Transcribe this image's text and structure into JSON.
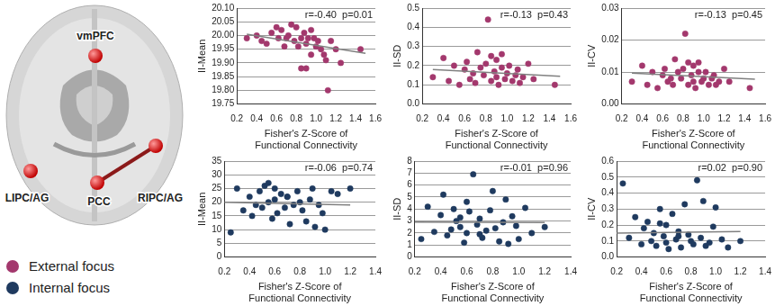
{
  "diagram": {
    "regions": [
      "vmPFC",
      "LIPC/AG",
      "PCC",
      "RIPC/AG"
    ],
    "connection": [
      "PCC",
      "RIPC/AG"
    ]
  },
  "chart_data": [
    {
      "type": "scatter",
      "ylabel": "II-Mean",
      "xlabel": [
        "Fisher's Z-Score of",
        "Functional Connectivity"
      ],
      "annotation": "r=-0.40  p=0.01",
      "x": [
        0.3,
        0.4,
        0.45,
        0.5,
        0.55,
        0.6,
        0.62,
        0.65,
        0.68,
        0.7,
        0.72,
        0.75,
        0.78,
        0.8,
        0.82,
        0.85,
        0.85,
        0.88,
        0.9,
        0.9,
        0.92,
        0.95,
        0.95,
        0.98,
        1.0,
        1.02,
        1.05,
        1.08,
        1.1,
        1.12,
        1.15,
        1.2,
        1.25,
        1.45
      ],
      "series": [
        {
          "name": "External focus",
          "color": "#a3386d",
          "values": [
            19.99,
            20.0,
            19.98,
            19.97,
            20.01,
            20.03,
            19.99,
            20.02,
            19.96,
            19.99,
            20.0,
            20.04,
            19.98,
            20.03,
            19.96,
            19.99,
            19.88,
            20.01,
            19.97,
            19.88,
            19.99,
            20.02,
            19.93,
            19.99,
            19.96,
            19.98,
            19.95,
            19.93,
            19.91,
            19.8,
            19.98,
            19.95,
            19.9,
            19.95
          ]
        },
        {
          "type": "line",
          "color": "#808080",
          "x": [
            0.3,
            1.5
          ],
          "values": [
            20.005,
            19.935
          ]
        }
      ],
      "xlim": [
        0.2,
        1.6
      ],
      "xticks": [
        0.2,
        0.4,
        0.6,
        0.8,
        {
          "value": 1,
          "label": "1.0"
        },
        1.2,
        1.4,
        1.6
      ],
      "ylim": [
        19.75,
        20.1
      ],
      "yticks": [
        19.75,
        {
          "value": 19.8,
          "label": "19.80"
        },
        19.85,
        {
          "value": 19.9,
          "label": "19.90"
        },
        19.95,
        {
          "value": 20,
          "label": "20.00"
        },
        20.05,
        {
          "value": 20.1,
          "label": "20.10"
        }
      ],
      "grid": true
    },
    {
      "type": "scatter",
      "ylabel": "II-SD",
      "xlabel": [
        "Fisher's Z-Score of",
        "Functional Connectivity"
      ],
      "annotation": "r=-0.13  p=0.43",
      "x": [
        0.3,
        0.4,
        0.45,
        0.5,
        0.55,
        0.6,
        0.62,
        0.65,
        0.68,
        0.7,
        0.72,
        0.75,
        0.78,
        0.8,
        0.82,
        0.85,
        0.85,
        0.88,
        0.9,
        0.9,
        0.92,
        0.95,
        0.95,
        0.98,
        1.0,
        1.02,
        1.05,
        1.08,
        1.1,
        1.12,
        1.15,
        1.2,
        1.25,
        1.45
      ],
      "series": [
        {
          "name": "External focus",
          "color": "#a3386d",
          "values": [
            0.14,
            0.24,
            0.12,
            0.2,
            0.1,
            0.18,
            0.22,
            0.13,
            0.16,
            0.11,
            0.27,
            0.19,
            0.15,
            0.21,
            0.44,
            0.12,
            0.25,
            0.17,
            0.14,
            0.23,
            0.1,
            0.19,
            0.26,
            0.13,
            0.16,
            0.2,
            0.12,
            0.15,
            0.18,
            0.11,
            0.14,
            0.21,
            0.13,
            0.1
          ]
        },
        {
          "type": "line",
          "color": "#808080",
          "x": [
            0.3,
            1.5
          ],
          "values": [
            0.18,
            0.145
          ]
        }
      ],
      "xlim": [
        0.2,
        1.6
      ],
      "xticks": [
        0.2,
        0.4,
        0.6,
        0.8,
        {
          "value": 1,
          "label": "1.0"
        },
        1.2,
        1.4,
        1.6
      ],
      "ylim": [
        0,
        0.5
      ],
      "yticks": [
        {
          "value": 0,
          "label": "0.0"
        },
        0.1,
        0.2,
        0.3,
        0.4,
        0.5
      ],
      "grid": true
    },
    {
      "type": "scatter",
      "ylabel": "II-CV",
      "xlabel": [
        "Fisher's Z-Score of",
        "Functional Connectivity"
      ],
      "annotation": "r=-0.13  p=0.45",
      "x": [
        0.3,
        0.4,
        0.45,
        0.5,
        0.55,
        0.6,
        0.62,
        0.65,
        0.68,
        0.7,
        0.72,
        0.75,
        0.78,
        0.8,
        0.82,
        0.85,
        0.85,
        0.88,
        0.9,
        0.9,
        0.92,
        0.95,
        0.95,
        0.98,
        1.0,
        1.02,
        1.05,
        1.08,
        1.1,
        1.12,
        1.15,
        1.2,
        1.25,
        1.45
      ],
      "series": [
        {
          "name": "External focus",
          "color": "#a3386d",
          "values": [
            0.007,
            0.012,
            0.006,
            0.01,
            0.005,
            0.009,
            0.011,
            0.007,
            0.008,
            0.006,
            0.014,
            0.01,
            0.008,
            0.011,
            0.022,
            0.006,
            0.013,
            0.009,
            0.007,
            0.012,
            0.005,
            0.01,
            0.013,
            0.007,
            0.008,
            0.01,
            0.006,
            0.008,
            0.009,
            0.006,
            0.007,
            0.011,
            0.007,
            0.005
          ]
        },
        {
          "type": "line",
          "color": "#808080",
          "x": [
            0.3,
            1.5
          ],
          "values": [
            0.0097,
            0.0078
          ]
        }
      ],
      "xlim": [
        0.2,
        1.6
      ],
      "xticks": [
        0.2,
        0.4,
        0.6,
        0.8,
        {
          "value": 1,
          "label": "1.0"
        },
        1.2,
        1.4,
        1.6
      ],
      "ylim": [
        0,
        0.03
      ],
      "yticks": [
        {
          "value": 0,
          "label": "0.00"
        },
        {
          "value": 0.01,
          "label": "0.01"
        },
        {
          "value": 0.02,
          "label": "0.02"
        },
        {
          "value": 0.03,
          "label": "0.03"
        }
      ],
      "grid": true
    },
    {
      "type": "scatter",
      "ylabel": "II-Mean",
      "xlabel": [
        "Fisher's Z-Score of",
        "Functional Connectivity"
      ],
      "annotation": "r=-0.06  p=0.74",
      "x": [
        0.25,
        0.3,
        0.35,
        0.4,
        0.42,
        0.45,
        0.48,
        0.5,
        0.52,
        0.55,
        0.58,
        0.6,
        0.6,
        0.62,
        0.65,
        0.68,
        0.7,
        0.72,
        0.75,
        0.78,
        0.8,
        0.82,
        0.85,
        0.88,
        0.9,
        0.92,
        0.95,
        0.98,
        1.0,
        1.05,
        1.1,
        1.2,
        0.55,
        0.7
      ],
      "series": [
        {
          "name": "Internal focus",
          "color": "#1f3a5f",
          "values": [
            9,
            25,
            17,
            22,
            15,
            19,
            24,
            18,
            26,
            20,
            14,
            25,
            21,
            16,
            23,
            18,
            22,
            12,
            19,
            24,
            20,
            17,
            13,
            21,
            25,
            11,
            19,
            16,
            10,
            24,
            23,
            25,
            27,
            22
          ]
        },
        {
          "type": "line",
          "color": "#808080",
          "x": [
            0.2,
            1.2
          ],
          "values": [
            20,
            19
          ]
        }
      ],
      "xlim": [
        0.2,
        1.4
      ],
      "xticks": [
        0.2,
        0.4,
        0.6,
        0.8,
        {
          "value": 1,
          "label": "1.0"
        },
        1.2,
        1.4
      ],
      "ylim": [
        0,
        35
      ],
      "yticks": [
        0,
        5,
        10,
        15,
        20,
        25,
        30,
        35
      ],
      "grid": true
    },
    {
      "type": "scatter",
      "ylabel": "II-SD",
      "xlabel": [
        "Fisher's Z-Score of",
        "Functional Connectivity"
      ],
      "annotation": "r=-0.01  p=0.96",
      "x": [
        0.25,
        0.3,
        0.35,
        0.4,
        0.42,
        0.45,
        0.48,
        0.5,
        0.52,
        0.55,
        0.58,
        0.6,
        0.6,
        0.62,
        0.65,
        0.68,
        0.7,
        0.72,
        0.75,
        0.78,
        0.8,
        0.82,
        0.85,
        0.88,
        0.9,
        0.92,
        0.95,
        0.98,
        1.0,
        1.05,
        1.1,
        1.2,
        0.55,
        0.7
      ],
      "series": [
        {
          "name": "Internal focus",
          "color": "#1f3a5f",
          "values": [
            1.5,
            4.2,
            2.1,
            3.5,
            5.2,
            1.8,
            2.3,
            4.0,
            3.0,
            2.5,
            1.2,
            4.6,
            2.0,
            3.8,
            6.9,
            2.7,
            3.2,
            1.6,
            2.2,
            3.9,
            5.5,
            2.4,
            1.3,
            2.9,
            4.8,
            1.1,
            3.4,
            2.6,
            1.5,
            4.1,
            2.0,
            2.5,
            3.3,
            1.9
          ]
        },
        {
          "type": "line",
          "color": "#808080",
          "x": [
            0.2,
            1.2
          ],
          "values": [
            2.92,
            2.88
          ]
        }
      ],
      "xlim": [
        0.2,
        1.4
      ],
      "xticks": [
        0.2,
        0.4,
        0.6,
        0.8,
        {
          "value": 1,
          "label": "1.0"
        },
        1.2,
        1.4
      ],
      "ylim": [
        0,
        8
      ],
      "yticks": [
        0,
        1,
        2,
        3,
        4,
        5,
        6,
        7,
        8
      ],
      "grid": true
    },
    {
      "type": "scatter",
      "ylabel": "II-CV",
      "xlabel": [
        "Fisher's Z-Score of",
        "Functional Connectivity"
      ],
      "annotation": "r=0.02  p=0.90",
      "x": [
        0.25,
        0.3,
        0.35,
        0.4,
        0.42,
        0.45,
        0.48,
        0.5,
        0.52,
        0.55,
        0.58,
        0.6,
        0.6,
        0.62,
        0.65,
        0.68,
        0.7,
        0.72,
        0.75,
        0.78,
        0.8,
        0.82,
        0.85,
        0.88,
        0.9,
        0.92,
        0.95,
        0.98,
        1.0,
        1.05,
        1.1,
        1.2,
        0.55,
        0.7
      ],
      "series": [
        {
          "name": "Internal focus",
          "color": "#1f3a5f",
          "values": [
            0.46,
            0.12,
            0.25,
            0.08,
            0.18,
            0.22,
            0.1,
            0.15,
            0.07,
            0.3,
            0.13,
            0.09,
            0.2,
            0.05,
            0.27,
            0.11,
            0.16,
            0.06,
            0.33,
            0.14,
            0.1,
            0.08,
            0.48,
            0.12,
            0.35,
            0.07,
            0.09,
            0.19,
            0.31,
            0.11,
            0.06,
            0.1,
            0.21,
            0.13
          ]
        },
        {
          "type": "line",
          "color": "#808080",
          "x": [
            0.2,
            1.2
          ],
          "values": [
            0.15,
            0.16
          ]
        }
      ],
      "xlim": [
        0.2,
        1.4
      ],
      "xticks": [
        0.2,
        0.4,
        0.6,
        0.8,
        {
          "value": 1,
          "label": "1.0"
        },
        1.2,
        1.4
      ],
      "ylim": [
        0,
        0.6
      ],
      "yticks": [
        {
          "value": 0,
          "label": "0.0"
        },
        0.1,
        0.2,
        0.3,
        0.4,
        0.5,
        0.6
      ],
      "grid": true
    }
  ]
}
